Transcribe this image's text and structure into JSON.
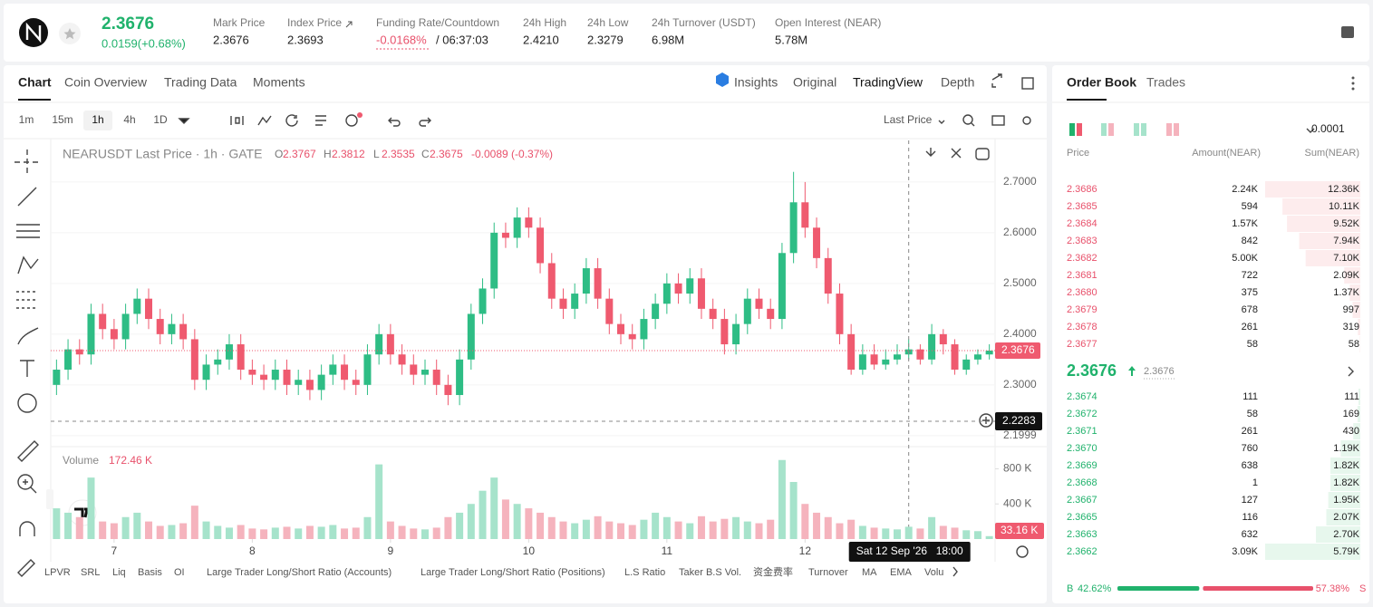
{
  "header": {
    "price": "2.3676",
    "change": "0.0159(+0.68%)",
    "stats": [
      {
        "label": "Mark Price",
        "value": "2.3676"
      },
      {
        "label": "Index Price",
        "value": "2.3693"
      },
      {
        "label": "Funding Rate/Countdown",
        "value": "-0.0168%",
        "value2": "/ 06:37:03"
      },
      {
        "label": "24h High",
        "value": "2.4210"
      },
      {
        "label": "24h Low",
        "value": "2.3279"
      },
      {
        "label": "24h Turnover (USDT)",
        "value": "6.98M"
      },
      {
        "label": "Open Interest (NEAR)",
        "value": "5.78M"
      }
    ]
  },
  "tabs": [
    "Chart",
    "Coin Overview",
    "Trading Data",
    "Moments"
  ],
  "views": [
    "Insights",
    "Original",
    "TradingView",
    "Depth"
  ],
  "intervals": [
    "1m",
    "15m",
    "1h",
    "4h",
    "1D"
  ],
  "price_type": "Last Price",
  "chart_data": {
    "type": "candlestick",
    "title": "NEARUSDT Last Price · 1h · GATE",
    "ohlc_legend": [
      {
        "key": "O",
        "value": "2.3767"
      },
      {
        "key": "H",
        "value": "2.3812"
      },
      {
        "key": "L",
        "value": "2.3535"
      },
      {
        "key": "C",
        "value": "2.3675"
      }
    ],
    "change": "-0.0089 (-0.37%)",
    "xlim": [
      -0.5,
      81.5
    ],
    "xticks": [
      {
        "value": 5,
        "label": "7"
      },
      {
        "value": 17,
        "label": "8"
      },
      {
        "value": 29,
        "label": "9"
      },
      {
        "value": 41,
        "label": "10"
      },
      {
        "value": 53,
        "label": "11"
      },
      {
        "value": 65,
        "label": "12"
      }
    ],
    "ylim": [
      2.18,
      2.782
    ],
    "yticks": [
      {
        "value": 2.7,
        "label": "2.7000"
      },
      {
        "value": 2.6,
        "label": "2.6000"
      },
      {
        "value": 2.5,
        "label": "2.5000"
      },
      {
        "value": 2.4,
        "label": "2.4000"
      },
      {
        "value": 2.3,
        "label": "2.3000"
      },
      2.1999
    ],
    "grid": true,
    "up_color": "#2ebd85",
    "down_color": "#ef5a6f",
    "open": [
      2.3,
      2.33,
      2.37,
      2.36,
      2.44,
      2.41,
      2.39,
      2.44,
      2.47,
      2.43,
      2.4,
      2.42,
      2.39,
      2.31,
      2.34,
      2.35,
      2.38,
      2.33,
      2.32,
      2.31,
      2.33,
      2.3,
      2.31,
      2.29,
      2.32,
      2.34,
      2.31,
      2.3,
      2.36,
      2.4,
      2.36,
      2.34,
      2.32,
      2.33,
      2.3,
      2.28,
      2.35,
      2.44,
      2.49,
      2.6,
      2.59,
      2.63,
      2.61,
      2.54,
      2.47,
      2.45,
      2.48,
      2.53,
      2.47,
      2.42,
      2.4,
      2.39,
      2.43,
      2.46,
      2.5,
      2.48,
      2.51,
      2.45,
      2.43,
      2.38,
      2.42,
      2.47,
      2.45,
      2.43,
      2.56,
      2.66,
      2.61,
      2.55,
      2.48,
      2.4,
      2.33,
      2.36,
      2.34,
      2.35,
      2.36,
      2.37,
      2.35,
      2.4,
      2.38,
      2.33,
      2.35,
      2.36
    ],
    "high": [
      2.35,
      2.39,
      2.39,
      2.46,
      2.46,
      2.43,
      2.46,
      2.49,
      2.49,
      2.45,
      2.44,
      2.44,
      2.41,
      2.36,
      2.37,
      2.4,
      2.4,
      2.35,
      2.34,
      2.35,
      2.35,
      2.33,
      2.33,
      2.34,
      2.36,
      2.36,
      2.33,
      2.38,
      2.42,
      2.42,
      2.38,
      2.36,
      2.35,
      2.35,
      2.32,
      2.37,
      2.46,
      2.51,
      2.62,
      2.62,
      2.65,
      2.65,
      2.63,
      2.56,
      2.49,
      2.5,
      2.55,
      2.55,
      2.49,
      2.44,
      2.42,
      2.45,
      2.48,
      2.52,
      2.52,
      2.53,
      2.53,
      2.47,
      2.45,
      2.44,
      2.49,
      2.49,
      2.47,
      2.58,
      2.72,
      2.7,
      2.63,
      2.57,
      2.5,
      2.42,
      2.38,
      2.38,
      2.37,
      2.38,
      2.39,
      2.38,
      2.42,
      2.41,
      2.39,
      2.36,
      2.37,
      2.38
    ],
    "low": [
      2.28,
      2.31,
      2.34,
      2.34,
      2.39,
      2.37,
      2.37,
      2.42,
      2.41,
      2.38,
      2.38,
      2.37,
      2.29,
      2.29,
      2.32,
      2.33,
      2.31,
      2.3,
      2.29,
      2.29,
      2.28,
      2.28,
      2.27,
      2.27,
      2.3,
      2.29,
      2.28,
      2.28,
      2.34,
      2.34,
      2.32,
      2.3,
      2.3,
      2.28,
      2.26,
      2.26,
      2.33,
      2.42,
      2.47,
      2.57,
      2.57,
      2.59,
      2.52,
      2.45,
      2.43,
      2.43,
      2.46,
      2.45,
      2.4,
      2.38,
      2.37,
      2.37,
      2.41,
      2.44,
      2.46,
      2.46,
      2.43,
      2.41,
      2.36,
      2.36,
      2.4,
      2.43,
      2.41,
      2.41,
      2.54,
      2.59,
      2.53,
      2.46,
      2.38,
      2.32,
      2.32,
      2.33,
      2.33,
      2.34,
      2.35,
      2.34,
      2.34,
      2.36,
      2.32,
      2.32,
      2.34,
      2.35
    ],
    "close": [
      2.33,
      2.37,
      2.36,
      2.44,
      2.41,
      2.39,
      2.44,
      2.47,
      2.43,
      2.4,
      2.42,
      2.39,
      2.31,
      2.34,
      2.35,
      2.38,
      2.33,
      2.32,
      2.31,
      2.33,
      2.3,
      2.31,
      2.29,
      2.32,
      2.34,
      2.31,
      2.3,
      2.36,
      2.4,
      2.36,
      2.34,
      2.32,
      2.33,
      2.3,
      2.28,
      2.35,
      2.44,
      2.49,
      2.6,
      2.59,
      2.63,
      2.61,
      2.54,
      2.47,
      2.45,
      2.48,
      2.53,
      2.47,
      2.42,
      2.4,
      2.39,
      2.43,
      2.46,
      2.5,
      2.48,
      2.51,
      2.45,
      2.43,
      2.38,
      2.42,
      2.47,
      2.45,
      2.43,
      2.56,
      2.66,
      2.61,
      2.55,
      2.48,
      2.4,
      2.33,
      2.36,
      2.34,
      2.35,
      2.36,
      2.37,
      2.35,
      2.4,
      2.38,
      2.33,
      2.35,
      2.36,
      2.3676
    ],
    "last_price": 2.3676,
    "crosshair": {
      "x": 74,
      "y": 2.2283,
      "date": "Sat 12 Sep '26",
      "time": "18:00"
    },
    "volume": {
      "title": "Volume",
      "current": "172.46 K",
      "ylim": [
        0,
        980
      ],
      "yticks": [
        {
          "value": 800,
          "label": "800 K"
        },
        {
          "value": 400,
          "label": "400 K"
        }
      ],
      "values": [
        350,
        300,
        250,
        700,
        200,
        180,
        250,
        300,
        200,
        150,
        160,
        180,
        380,
        200,
        150,
        130,
        160,
        120,
        110,
        130,
        140,
        120,
        150,
        140,
        160,
        120,
        130,
        250,
        850,
        200,
        150,
        120,
        110,
        130,
        250,
        300,
        400,
        550,
        700,
        450,
        400,
        350,
        300,
        250,
        200,
        180,
        220,
        260,
        200,
        180,
        160,
        220,
        300,
        250,
        200,
        180,
        260,
        200,
        230,
        250,
        200,
        180,
        220,
        900,
        650,
        400,
        300,
        250,
        180,
        220,
        150,
        130,
        120,
        110,
        140,
        120,
        250,
        150,
        130,
        100,
        90,
        33.16
      ],
      "tag": {
        "value": 33.16,
        "label": "33.16 K"
      }
    }
  },
  "indicators": [
    "LPVR",
    "SRL",
    "Liq",
    "Basis",
    "OI",
    "Large Trader Long/Short Ratio (Accounts)",
    "Large Trader Long/Short Ratio (Positions)",
    "L.S Ratio",
    "Taker B.S Vol.",
    "资金费率",
    "Turnover",
    "MA",
    "EMA",
    "Volu"
  ],
  "order_book": {
    "tabs": [
      "Order Book",
      "Trades"
    ],
    "precision": "0.0001",
    "headers": [
      "Price",
      "Amount(NEAR)",
      "Sum(NEAR)"
    ],
    "asks": [
      {
        "price": "2.3686",
        "amount": "2.24K",
        "sum": {
          "value": 12360,
          "label": "12.36K"
        }
      },
      {
        "price": "2.3685",
        "amount": "594",
        "sum": {
          "value": 10110,
          "label": "10.11K"
        }
      },
      {
        "price": "2.3684",
        "amount": "1.57K",
        "sum": {
          "value": 9520,
          "label": "9.52K"
        }
      },
      {
        "price": "2.3683",
        "amount": "842",
        "sum": {
          "value": 7940,
          "label": "7.94K"
        }
      },
      {
        "price": "2.3682",
        "amount": "5.00K",
        "sum": {
          "value": 7100,
          "label": "7.10K"
        }
      },
      {
        "price": "2.3681",
        "amount": "722",
        "sum": {
          "value": 2090,
          "label": "2.09K"
        }
      },
      {
        "price": "2.3680",
        "amount": "375",
        "sum": {
          "value": 1370,
          "label": "1.37K"
        }
      },
      {
        "price": "2.3679",
        "amount": "678",
        "sum": 997
      },
      {
        "price": "2.3678",
        "amount": "261",
        "sum": 319
      },
      {
        "price": "2.3677",
        "amount": "58",
        "sum": 58
      }
    ],
    "mid": {
      "price": "2.3676",
      "mark": "2.3676"
    },
    "bids": [
      {
        "price": "2.3674",
        "amount": "111",
        "sum": 111
      },
      {
        "price": "2.3672",
        "amount": "58",
        "sum": 169
      },
      {
        "price": "2.3671",
        "amount": "261",
        "sum": 430
      },
      {
        "price": "2.3670",
        "amount": "760",
        "sum": {
          "value": 1190,
          "label": "1.19K"
        }
      },
      {
        "price": "2.3669",
        "amount": "638",
        "sum": {
          "value": 1820,
          "label": "1.82K"
        }
      },
      {
        "price": "2.3668",
        "amount": "1",
        "sum": {
          "value": 1820,
          "label": "1.82K"
        }
      },
      {
        "price": "2.3667",
        "amount": "127",
        "sum": {
          "value": 1950,
          "label": "1.95K"
        }
      },
      {
        "price": "2.3665",
        "amount": "116",
        "sum": {
          "value": 2070,
          "label": "2.07K"
        }
      },
      {
        "price": "2.3663",
        "amount": "632",
        "sum": {
          "value": 2700,
          "label": "2.70K"
        }
      },
      {
        "price": "2.3662",
        "amount": "3.09K",
        "sum": {
          "value": 5790,
          "label": "5.79K"
        }
      }
    ],
    "ratio": {
      "buy_tag": "B",
      "buy": {
        "value": 42.62,
        "label": "42.62%"
      },
      "sell": {
        "value": 57.38,
        "label": "57.38%"
      },
      "sell_tag": "S"
    }
  }
}
